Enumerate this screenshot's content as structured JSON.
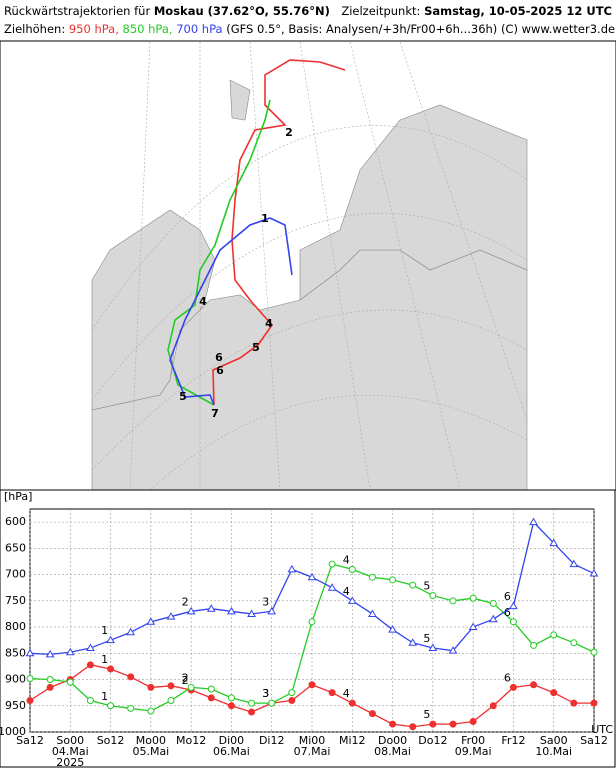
{
  "header": {
    "title_prefix": "Rückwärtstrajektorien für",
    "location": "Moskau (37.62°O, 55.76°N)",
    "target_prefix": "Zielzeitpunkt:",
    "target_time": "Samstag, 10-05-2025  12 UTC",
    "levels_prefix": "Zielhöhen:",
    "level_950": "950 hPa,",
    "level_850": "850 hPa,",
    "level_700": "700 hPa",
    "info": "(GFS 0.5°, Basis: Analysen/+3h/Fr00+6h...36h)  (C) www.wetter3.de"
  },
  "map": {
    "labels": [
      "2",
      "4",
      "5",
      "6",
      "7",
      "1",
      "5",
      "6",
      "4"
    ]
  },
  "chart_data": {
    "type": "line",
    "ylabel": "[hPa]",
    "x_unit": "UTC",
    "year": "2025",
    "date_labels": [
      "04.Mai",
      "05.Mai",
      "06.Mai",
      "07.Mai",
      "08.Mai",
      "09.Mai",
      "10.Mai"
    ],
    "day_labels": [
      "1",
      "2",
      "3",
      "4",
      "5",
      "6"
    ],
    "x": [
      0,
      6,
      12,
      18,
      24,
      30,
      36,
      42,
      48,
      54,
      60,
      66,
      72,
      78,
      84,
      90,
      96,
      102,
      108,
      114,
      120,
      126,
      132,
      138,
      144,
      150,
      156,
      162,
      168
    ],
    "xlim": [
      0,
      168
    ],
    "xticks": [
      {
        "value": 0,
        "label": "Sa12"
      },
      {
        "value": 12,
        "label": "So00"
      },
      {
        "value": 24,
        "label": "So12"
      },
      {
        "value": 36,
        "label": "Mo00"
      },
      {
        "value": 48,
        "label": "Mo12"
      },
      {
        "value": 60,
        "label": "Di00"
      },
      {
        "value": 72,
        "label": "Di12"
      },
      {
        "value": 84,
        "label": "Mi00"
      },
      {
        "value": 96,
        "label": "Mi12"
      },
      {
        "value": 108,
        "label": "Do00"
      },
      {
        "value": 120,
        "label": "Do12"
      },
      {
        "value": 132,
        "label": "Fr00"
      },
      {
        "value": 144,
        "label": "Fr12"
      },
      {
        "value": 156,
        "label": "Sa00"
      },
      {
        "value": 168,
        "label": "Sa12"
      }
    ],
    "ylim": [
      575,
      1000
    ],
    "y_reversed": true,
    "yticks": [
      600,
      650,
      700,
      750,
      800,
      850,
      900,
      950,
      1000
    ],
    "grid": true,
    "series": [
      {
        "name": "950 hPa",
        "color": "#ee3030",
        "marker": "filled-circle",
        "values": [
          940,
          915,
          900,
          872,
          880,
          895,
          915,
          912,
          920,
          935,
          950,
          962,
          945,
          940,
          910,
          925,
          945,
          965,
          985,
          990,
          985,
          985,
          980,
          950,
          915,
          910,
          925,
          945,
          945
        ]
      },
      {
        "name": "850 hPa",
        "color": "#22cc22",
        "marker": "circle",
        "values": [
          898,
          900,
          905,
          940,
          950,
          955,
          960,
          940,
          915,
          918,
          935,
          945,
          945,
          925,
          790,
          680,
          690,
          705,
          710,
          720,
          740,
          750,
          745,
          755,
          790,
          835,
          815,
          830,
          848
        ]
      },
      {
        "name": "700 hPa",
        "color": "#3344ee",
        "marker": "triangle",
        "values": [
          850,
          852,
          848,
          840,
          825,
          810,
          790,
          780,
          770,
          765,
          770,
          775,
          770,
          690,
          705,
          725,
          750,
          775,
          805,
          830,
          840,
          845,
          800,
          785,
          760,
          600,
          640,
          680,
          698
        ]
      }
    ]
  }
}
